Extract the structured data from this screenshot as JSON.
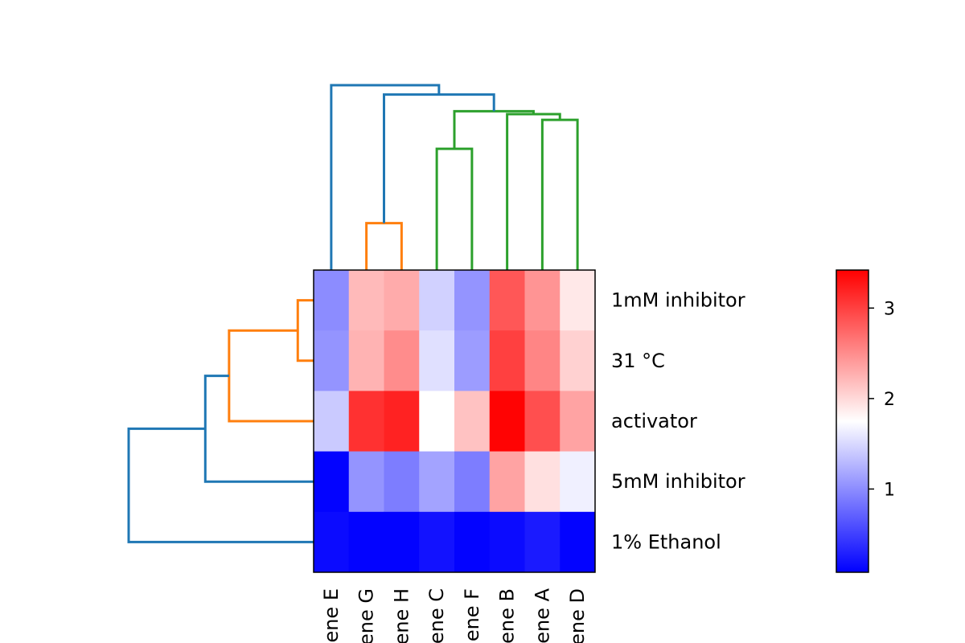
{
  "chart_data": {
    "type": "heatmap",
    "title": "",
    "xlabel": "",
    "ylabel": "",
    "columns": [
      "Gene E",
      "Gene G",
      "Gene H",
      "Gene C",
      "Gene F",
      "Gene B",
      "Gene A",
      "Gene D"
    ],
    "rows": [
      "1mM inhibitor",
      "31 °C",
      "activator",
      "5mM inhibitor",
      "1% Ethanol"
    ],
    "values": [
      [
        1.0,
        2.2,
        2.3,
        1.45,
        1.05,
        2.85,
        2.45,
        1.9
      ],
      [
        1.05,
        2.25,
        2.5,
        1.55,
        1.1,
        3.0,
        2.55,
        2.05
      ],
      [
        1.4,
        3.1,
        3.2,
        1.75,
        2.15,
        3.4,
        2.9,
        2.35
      ],
      [
        0.1,
        1.05,
        0.9,
        1.15,
        0.9,
        2.35,
        1.95,
        1.65
      ],
      [
        0.15,
        0.1,
        0.1,
        0.2,
        0.1,
        0.15,
        0.25,
        0.1
      ]
    ],
    "colormap": {
      "low": "#0000ff",
      "mid": "#ffffff",
      "high": "#ff0000",
      "vmin": 0.08,
      "vmid": 1.75,
      "vmax": 3.42
    },
    "colorbar": {
      "ticks": [
        1,
        2,
        3
      ],
      "tick_labels": [
        "1",
        "2",
        "3"
      ]
    },
    "column_dendrogram": {
      "orientation": "top",
      "links": [
        {
          "left": "Gene G",
          "right": "Gene H",
          "height": 0.65,
          "color": "#ff7f0e"
        },
        {
          "left": "Gene C",
          "right": "Gene F",
          "height": 1.68,
          "color": "#2ca02c"
        },
        {
          "left": "Gene A",
          "right": "Gene D",
          "height": 2.08,
          "color": "#2ca02c"
        },
        {
          "left": "Gene B",
          "right": "cluster(A,D)",
          "height": 2.16,
          "color": "#2ca02c"
        },
        {
          "left": "cluster(C,F)",
          "right": "cluster(B,A,D)",
          "height": 2.2,
          "color": "#2ca02c"
        },
        {
          "left": "cluster(G,H)",
          "right": "cluster(C,F,B,A,D)",
          "height": 2.43,
          "color": "#1f77b4"
        },
        {
          "left": "Gene E",
          "right": "cluster(G,H,C,F,B,A,D)",
          "height": 2.56,
          "color": "#1f77b4"
        }
      ]
    },
    "row_dendrogram": {
      "orientation": "left",
      "links": [
        {
          "top": "1mM inhibitor",
          "bottom": "31 °C",
          "height": 0.6,
          "color": "#ff7f0e"
        },
        {
          "top": "cluster(1mM inhibitor,31 °C)",
          "bottom": "activator",
          "height": 3.2,
          "color": "#ff7f0e"
        },
        {
          "top": "cluster(1mM inhibitor,31 °C,activator)",
          "bottom": "5mM inhibitor",
          "height": 4.1,
          "color": "#1f77b4"
        },
        {
          "top": "cluster(1mM inhibitor,31 °C,activator,5mM inhibitor)",
          "bottom": "1% Ethanol",
          "height": 7.0,
          "color": "#1f77b4"
        }
      ]
    }
  }
}
